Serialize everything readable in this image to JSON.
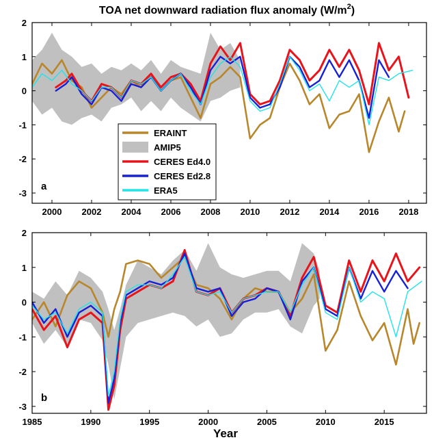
{
  "title": "TOA net downward radiation flux anomaly (W/m",
  "title_sup": "2",
  "title_close": ")",
  "xlabel": "Year",
  "legend": [
    {
      "name": "ERAINT",
      "color": "#b8862b",
      "kind": "line"
    },
    {
      "name": "AMIP5",
      "color": "#c0c0c0",
      "kind": "band"
    },
    {
      "name": "CERES Ed4.0",
      "color": "#e8141c",
      "kind": "line"
    },
    {
      "name": "CERES Ed2.8",
      "color": "#1620d6",
      "kind": "line"
    },
    {
      "name": "ERA5",
      "color": "#22e3e8",
      "kind": "line"
    }
  ],
  "chart_data": [
    {
      "type": "line",
      "panel": "a",
      "xlim": [
        1999,
        2018.9
      ],
      "ylim": [
        -3.3,
        2
      ],
      "yticks": [
        -3,
        -2,
        -1,
        0,
        1,
        2
      ],
      "xticks": [
        2000,
        2002,
        2004,
        2006,
        2008,
        2010,
        2012,
        2014,
        2016,
        2018
      ],
      "grid": false,
      "legend_position": "center-left",
      "series": [
        {
          "name": "AMIP5",
          "kind": "band",
          "color": "#c0c0c0",
          "x": [
            1999,
            1999.5,
            2000,
            2000.5,
            2001,
            2001.5,
            2002,
            2002.5,
            2003,
            2003.5,
            2004,
            2004.5,
            2005,
            2005.5,
            2006,
            2006.5,
            2007,
            2007.5,
            2008,
            2008.5,
            2009,
            2009.5
          ],
          "upper": [
            0.9,
            1.2,
            1.7,
            1.2,
            1.0,
            0.7,
            0.8,
            0.5,
            0.7,
            0.6,
            0.8,
            0.6,
            0.9,
            0.5,
            0.9,
            0.7,
            0.6,
            0.5,
            1.7,
            1.2,
            1.4,
            0.9
          ],
          "lower": [
            -0.3,
            -0.7,
            -0.5,
            -0.9,
            -1.0,
            -0.8,
            -0.7,
            -0.9,
            -0.5,
            -0.4,
            -0.2,
            -0.6,
            -0.3,
            -0.6,
            -0.2,
            -0.5,
            -0.7,
            -0.9,
            -0.3,
            -0.2,
            0.0,
            0.1
          ]
        },
        {
          "name": "ERAINT",
          "color": "#b8862b",
          "x": [
            1999,
            1999.5,
            2000,
            2000.5,
            2001,
            2001.5,
            2002,
            2002.5,
            2003,
            2003.5,
            2004,
            2004.5,
            2005,
            2005.5,
            2006,
            2006.5,
            2007,
            2007.5,
            2008,
            2008.5,
            2009,
            2009.5,
            2010,
            2010.5,
            2011,
            2011.5,
            2012,
            2012.5,
            2013,
            2013.5,
            2014,
            2014.5,
            2015,
            2015.5,
            2016,
            2016.5,
            2017,
            2017.5,
            2017.8
          ],
          "y": [
            0.2,
            0.8,
            0.5,
            0.9,
            0.3,
            0.1,
            -0.5,
            -0.2,
            0.1,
            -0.1,
            0.3,
            0.1,
            0.5,
            0.0,
            0.3,
            0.4,
            -0.2,
            -0.8,
            0.2,
            0.4,
            0.7,
            0.4,
            -1.4,
            -1.0,
            -0.8,
            0.1,
            0.8,
            0.3,
            -0.4,
            -0.1,
            -1.1,
            -0.7,
            -0.6,
            -0.1,
            -1.8,
            -0.9,
            -0.2,
            -1.2,
            -0.6
          ]
        },
        {
          "name": "CERES Ed4.0",
          "color": "#e8141c",
          "x": [
            2000.2,
            2000.7,
            2001,
            2001.5,
            2002,
            2002.5,
            2003,
            2003.5,
            2004,
            2004.5,
            2005,
            2005.5,
            2006,
            2006.5,
            2007,
            2007.5,
            2008,
            2008.5,
            2009,
            2009.5,
            2010,
            2010.5,
            2011,
            2011.5,
            2012,
            2012.5,
            2013,
            2013.5,
            2014,
            2014.5,
            2015,
            2015.5,
            2016,
            2016.5,
            2017,
            2017.5,
            2018
          ],
          "y": [
            0.1,
            0.3,
            0.5,
            0.0,
            -0.3,
            0.2,
            0.1,
            -0.2,
            0.3,
            0.2,
            0.5,
            0.1,
            0.4,
            0.5,
            0.2,
            -0.3,
            0.8,
            1.3,
            0.9,
            1.4,
            -0.1,
            -0.4,
            -0.3,
            0.3,
            1.2,
            0.9,
            0.3,
            0.6,
            1.2,
            0.7,
            1.2,
            0.6,
            -0.4,
            1.4,
            0.6,
            1.0,
            -0.2
          ]
        },
        {
          "name": "CERES Ed2.8",
          "color": "#1620d6",
          "x": [
            2000.2,
            2000.7,
            2001,
            2001.5,
            2002,
            2002.5,
            2003,
            2003.5,
            2004,
            2004.5,
            2005,
            2005.5,
            2006,
            2006.5,
            2007,
            2007.5,
            2008,
            2008.5,
            2009,
            2009.5,
            2010,
            2010.5,
            2011,
            2011.5,
            2012,
            2012.5,
            2013,
            2013.5,
            2014,
            2014.5,
            2015,
            2015.5,
            2016,
            2016.5,
            2017
          ],
          "y": [
            0.0,
            0.2,
            0.4,
            -0.1,
            -0.4,
            0.1,
            0.0,
            -0.3,
            0.2,
            0.1,
            0.4,
            0.0,
            0.3,
            0.5,
            0.1,
            -0.4,
            0.6,
            1.0,
            0.8,
            1.0,
            -0.2,
            -0.5,
            -0.4,
            0.1,
            1.0,
            0.7,
            0.1,
            0.3,
            0.9,
            0.4,
            0.9,
            0.3,
            -0.8,
            0.9,
            0.4
          ]
        },
        {
          "name": "ERA5",
          "color": "#22e3e8",
          "x": [
            1999,
            1999.5,
            2000,
            2000.5,
            2001,
            2001.5,
            2002,
            2002.5,
            2003,
            2003.5,
            2004,
            2004.5,
            2005,
            2005.5,
            2006,
            2006.5,
            2007,
            2007.5,
            2008,
            2008.5,
            2009,
            2009.5,
            2010,
            2010.5,
            2011,
            2011.5,
            2012,
            2012.5,
            2013,
            2013.5,
            2014,
            2014.5,
            2015,
            2015.5,
            2016,
            2016.5,
            2017,
            2017.5,
            2018.2
          ],
          "y": [
            0.1,
            0.5,
            0.3,
            0.6,
            0.2,
            0.0,
            -0.3,
            0.1,
            0.1,
            -0.2,
            0.3,
            0.2,
            0.4,
            0.0,
            0.3,
            0.5,
            0.0,
            -0.4,
            0.4,
            0.8,
            1.0,
            0.7,
            -0.3,
            -0.6,
            -0.5,
            0.2,
            1.0,
            0.6,
            0.0,
            0.2,
            -0.3,
            0.3,
            0.1,
            0.3,
            -1.0,
            0.4,
            0.3,
            0.5,
            0.6
          ]
        }
      ]
    },
    {
      "type": "line",
      "panel": "b",
      "xlim": [
        1985,
        2018.6
      ],
      "ylim": [
        -3.2,
        2
      ],
      "yticks": [
        -3,
        -2,
        -1,
        0,
        1,
        2
      ],
      "xticks": [
        1985,
        1990,
        1995,
        2000,
        2005,
        2010,
        2015
      ],
      "grid": false,
      "series": [
        {
          "name": "AMIP5",
          "kind": "band",
          "color": "#c0c0c0",
          "x": [
            1985,
            1986,
            1987,
            1988,
            1989,
            1990,
            1991,
            1991.5,
            1992,
            1992.5,
            1993,
            1994,
            1995,
            1996,
            1997,
            1998,
            1999,
            2000,
            2001,
            2002,
            2003,
            2004,
            2005,
            2006,
            2007,
            2008,
            2009,
            2009.5
          ],
          "upper": [
            0.3,
            0.1,
            0.6,
            0.2,
            0.9,
            0.7,
            0.3,
            -0.2,
            -0.8,
            -0.2,
            0.5,
            1.2,
            1.0,
            0.8,
            1.2,
            1.5,
            0.9,
            1.7,
            1.0,
            0.8,
            0.7,
            0.8,
            0.9,
            0.9,
            0.6,
            1.7,
            1.4,
            0.9
          ],
          "lower": [
            -0.6,
            -1.2,
            -0.8,
            -1.3,
            -0.5,
            -0.6,
            -1.1,
            -1.8,
            -2.8,
            -1.9,
            -1.0,
            -0.6,
            -0.5,
            -0.4,
            -0.3,
            -0.4,
            -0.7,
            -0.5,
            -1.0,
            -0.9,
            -0.5,
            -0.3,
            -0.3,
            -0.2,
            -0.7,
            -0.9,
            -0.1,
            0.1
          ]
        },
        {
          "name": "ERAINT",
          "color": "#b8862b",
          "x": [
            1985,
            1986,
            1987,
            1988,
            1989,
            1990,
            1991,
            1991.5,
            1992,
            1992.5,
            1993,
            1994,
            1995,
            1996,
            1997,
            1998,
            1999,
            2000,
            2001,
            2002,
            2003,
            2004,
            2005,
            2006,
            2007,
            2008,
            2009,
            2010,
            2011,
            2012,
            2013,
            2014,
            2015,
            2016,
            2017,
            2017.5,
            2018
          ],
          "y": [
            -0.5,
            0.0,
            -0.7,
            0.2,
            0.6,
            0.4,
            -0.3,
            -1.0,
            -0.2,
            0.3,
            1.1,
            1.2,
            1.1,
            0.7,
            1.0,
            1.3,
            0.5,
            0.4,
            0.1,
            -0.5,
            0.1,
            0.4,
            0.3,
            0.3,
            -0.3,
            0.1,
            0.8,
            -1.4,
            -0.8,
            0.6,
            -0.4,
            -1.1,
            -0.6,
            -1.8,
            -0.2,
            -1.2,
            -0.6
          ]
        },
        {
          "name": "CERES Ed4.0",
          "color": "#e8141c",
          "x": [
            1985,
            1986,
            1987,
            1988,
            1989,
            1990,
            1991,
            1991.5,
            1992,
            1992.5,
            1993,
            1994,
            1995,
            1996,
            1997,
            1998,
            1999,
            2000,
            2001,
            2002,
            2003,
            2004,
            2005,
            2006,
            2007,
            2008,
            2009,
            2010,
            2011,
            2012,
            2013,
            2014,
            2015,
            2016,
            2017,
            2018
          ],
          "y": [
            -0.2,
            -0.8,
            -0.4,
            -1.3,
            -0.5,
            -0.3,
            -0.6,
            -3.1,
            -2.4,
            -0.8,
            0.1,
            0.3,
            0.5,
            0.4,
            0.6,
            1.5,
            0.3,
            0.2,
            0.4,
            -0.3,
            0.1,
            0.2,
            0.4,
            0.3,
            -0.4,
            0.7,
            1.3,
            -0.1,
            -0.3,
            1.2,
            0.3,
            1.2,
            0.6,
            1.4,
            0.6,
            1.0
          ]
        },
        {
          "name": "CERES Ed2.8",
          "color": "#1620d6",
          "x": [
            1985,
            1986,
            1987,
            1988,
            1989,
            1990,
            1991,
            1991.5,
            1992,
            1992.5,
            1993,
            1994,
            1995,
            1996,
            1997,
            1998,
            1999,
            2000,
            2001,
            2002,
            2003,
            2004,
            2005,
            2006,
            2007,
            2008,
            2009,
            2010,
            2011,
            2012,
            2013,
            2014,
            2015,
            2016,
            2017
          ],
          "y": [
            0.0,
            -0.6,
            -0.2,
            -1.0,
            -0.3,
            -0.1,
            -0.4,
            -2.9,
            -2.2,
            -0.6,
            0.2,
            0.4,
            0.6,
            0.5,
            0.7,
            1.4,
            0.4,
            0.3,
            0.4,
            -0.4,
            0.0,
            0.1,
            0.4,
            0.3,
            -0.5,
            0.6,
            1.0,
            -0.2,
            -0.4,
            1.0,
            0.1,
            0.9,
            0.3,
            0.9,
            0.4
          ]
        },
        {
          "name": "ERA5",
          "color": "#22e3e8",
          "x": [
            1985,
            1986,
            1987,
            1988,
            1989,
            1990,
            1991,
            1991.5,
            1992,
            1992.5,
            1993,
            1994,
            1995,
            1996,
            1997,
            1998,
            1999,
            2000,
            2001,
            2002,
            2003,
            2004,
            2005,
            2006,
            2007,
            2008,
            2009,
            2010,
            2011,
            2012,
            2013,
            2014,
            2015,
            2016,
            2017,
            2018.2
          ],
          "y": [
            -0.1,
            -0.5,
            -0.3,
            -0.9,
            -0.2,
            0.0,
            -0.3,
            -2.7,
            -2.0,
            -0.5,
            0.3,
            0.5,
            0.5,
            0.4,
            0.8,
            1.3,
            0.3,
            0.2,
            0.3,
            -0.3,
            0.1,
            0.2,
            0.3,
            0.3,
            -0.3,
            0.5,
            1.0,
            -0.3,
            -0.5,
            1.0,
            0.0,
            0.3,
            0.1,
            -1.0,
            0.3,
            0.6
          ]
        }
      ]
    }
  ]
}
